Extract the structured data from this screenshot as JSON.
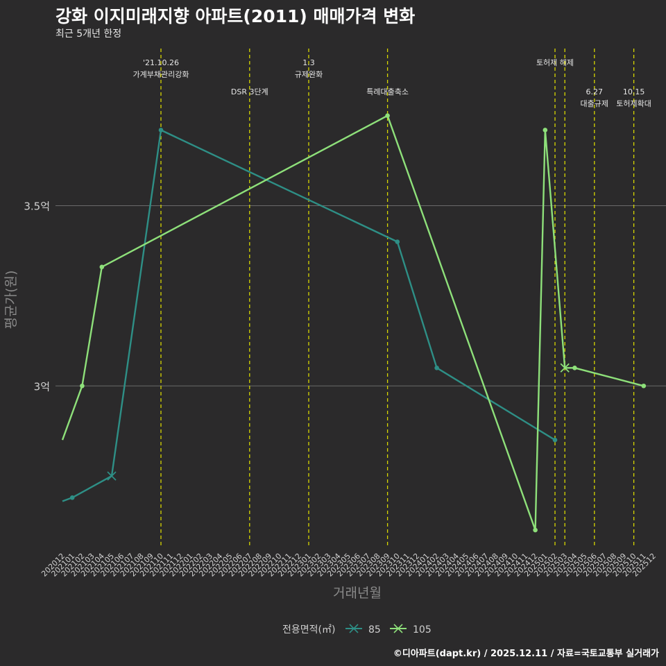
{
  "title": "강화 이지미래지향 아파트(2011) 매매가격 변화",
  "subtitle": "최근 5개년 한정",
  "caption": "©디아파트(dapt.kr) / 2025.12.11 / 자료=국토교통부 실거래가",
  "colors": {
    "background": "#2b2a2b",
    "grid": "#6b6b6b",
    "event_line": "#d8d800",
    "series_85": "#2e8f86",
    "series_105": "#8ee07a",
    "axis_text": "#d0d0d0",
    "axis_title": "#8a8a8a"
  },
  "chart_data": {
    "type": "line",
    "xlabel": "거래년월",
    "ylabel": "평균가(원)",
    "ylim": [
      2.55,
      3.94
    ],
    "y_ticks": [
      {
        "value": 3.0,
        "label": "3억"
      },
      {
        "value": 3.5,
        "label": "3.5억"
      }
    ],
    "categories": [
      "202012",
      "202101",
      "202102",
      "202103",
      "202104",
      "202105",
      "202106",
      "202107",
      "202108",
      "202109",
      "202110",
      "202111",
      "202112",
      "202201",
      "202202",
      "202203",
      "202204",
      "202205",
      "202206",
      "202207",
      "202208",
      "202209",
      "202210",
      "202211",
      "202212",
      "202301",
      "202302",
      "202303",
      "202304",
      "202305",
      "202306",
      "202307",
      "202308",
      "202309",
      "202310",
      "202311",
      "202312",
      "202401",
      "202402",
      "202403",
      "202404",
      "202405",
      "202406",
      "202407",
      "202408",
      "202409",
      "202410",
      "202411",
      "202412",
      "202501",
      "202502",
      "202503",
      "202504",
      "202505",
      "202506",
      "202507",
      "202508",
      "202509",
      "202510",
      "202511",
      "202512"
    ],
    "legend_title": "전용면적(㎡)",
    "series": [
      {
        "name": "85",
        "color": "#2e8f86",
        "points": [
          {
            "x": "202012",
            "y": 2.68
          },
          {
            "x": "202101",
            "y": 2.69
          },
          {
            "x": "202105",
            "y": 2.75,
            "marker": "x"
          },
          {
            "x": "202110",
            "y": 3.71
          },
          {
            "x": "202310",
            "y": 3.4
          },
          {
            "x": "202402",
            "y": 3.05
          },
          {
            "x": "202502",
            "y": 2.85
          }
        ]
      },
      {
        "name": "105",
        "color": "#8ee07a",
        "points": [
          {
            "x": "202012",
            "y": 2.85
          },
          {
            "x": "202102",
            "y": 3.0
          },
          {
            "x": "202104",
            "y": 3.33
          },
          {
            "x": "202309",
            "y": 3.75
          },
          {
            "x": "202412",
            "y": 2.6
          },
          {
            "x": "202501",
            "y": 3.71
          },
          {
            "x": "202503",
            "y": 3.05,
            "marker": "x"
          },
          {
            "x": "202504",
            "y": 3.05
          },
          {
            "x": "202511",
            "y": 3.0
          }
        ]
      }
    ],
    "events": [
      {
        "x": "202110",
        "lines": [
          "'21.10.26",
          "가계부채관리강화"
        ],
        "row": 1
      },
      {
        "x": "202207",
        "lines": [
          "DSR 3단계"
        ],
        "row": 2
      },
      {
        "x": "202301",
        "lines": [
          "1.3",
          "규제완화"
        ],
        "row": 1
      },
      {
        "x": "202309",
        "lines": [
          "특례대출축소"
        ],
        "row": 2
      },
      {
        "x": "202502",
        "lines": [
          "토허제 해제"
        ],
        "row": 1,
        "text_shift": true
      },
      {
        "x": "202503",
        "lines": [],
        "row": 1
      },
      {
        "x": "202506",
        "lines": [
          "6.27",
          "대출규제"
        ],
        "row": 2
      },
      {
        "x": "202510",
        "lines": [
          "10.15",
          "토허제확대"
        ],
        "row": 2
      }
    ]
  }
}
